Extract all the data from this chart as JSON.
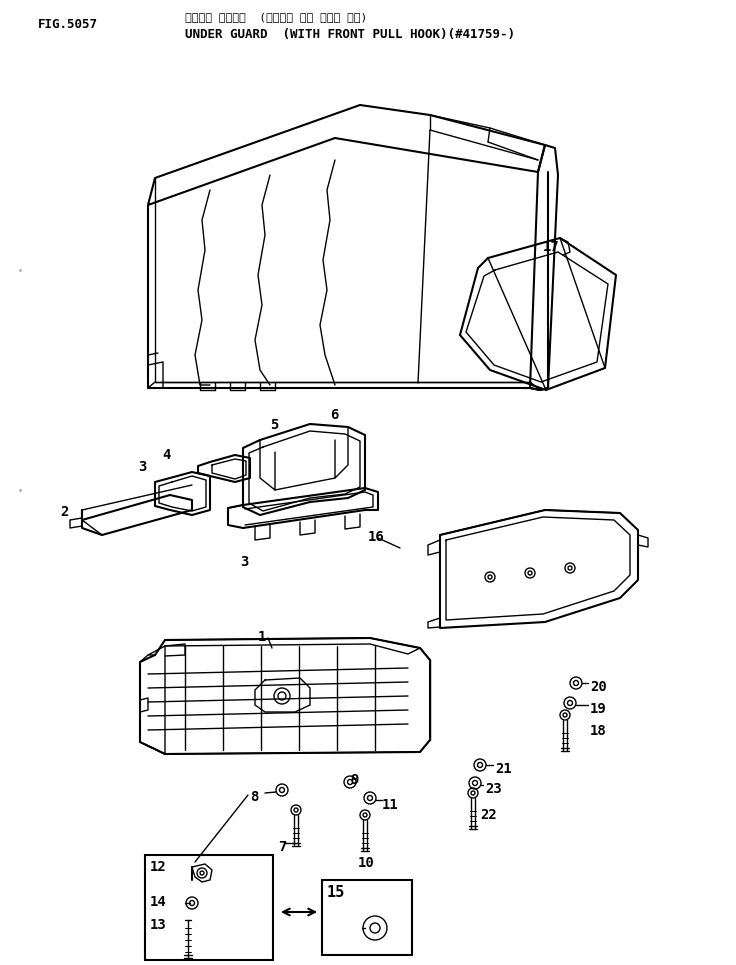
{
  "title_japanese": "アンダー ガード・  (フロント プル フック ツキ)",
  "title_english": "UNDER GUARD  (WITH FRONT PULL HOOK)(#41759-)",
  "fig_number": "FIG.5057",
  "bg_color": "#ffffff",
  "line_color": "#000000"
}
